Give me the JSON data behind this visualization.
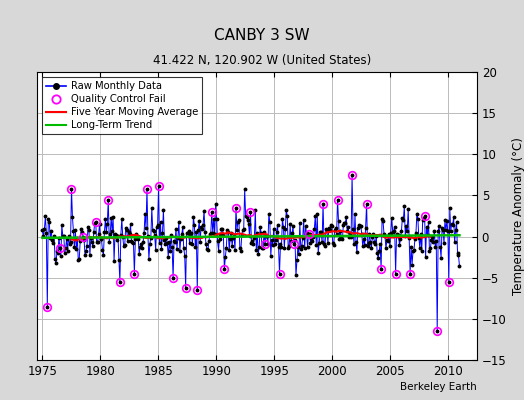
{
  "title": "CANBY 3 SW",
  "subtitle": "41.422 N, 120.902 W (United States)",
  "ylabel": "Temperature Anomaly (°C)",
  "attribution": "Berkeley Earth",
  "xlim": [
    1974.5,
    2012.5
  ],
  "ylim": [
    -15,
    20
  ],
  "yticks": [
    -15,
    -10,
    -5,
    0,
    5,
    10,
    15,
    20
  ],
  "xticks": [
    1975,
    1980,
    1985,
    1990,
    1995,
    2000,
    2005,
    2010
  ],
  "bg_color": "#d8d8d8",
  "plot_bg_color": "#ffffff",
  "raw_line_color": "#0000ff",
  "raw_dot_color": "#000000",
  "qc_fail_color": "#ff00ff",
  "moving_avg_color": "#ff0000",
  "trend_color": "#00bb00",
  "grid_color": "#bbbbbb",
  "seed": 42,
  "n_points": 432,
  "start_year": 1975.0,
  "end_year": 2011.0
}
